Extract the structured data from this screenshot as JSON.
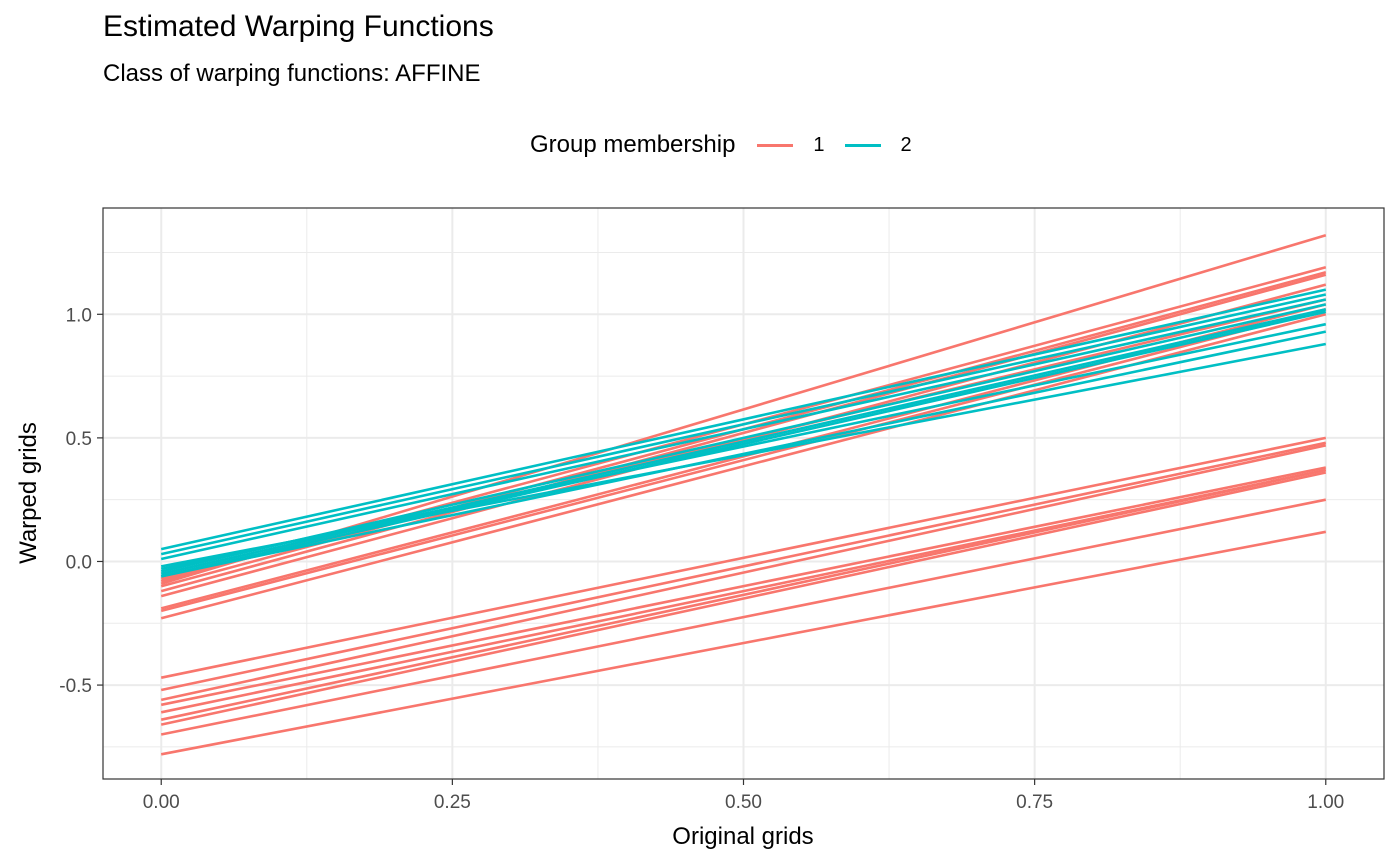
{
  "chart_data": {
    "type": "line",
    "title": "Estimated Warping Functions",
    "subtitle": "Class of warping functions: AFFINE",
    "xlabel": "Original grids",
    "ylabel": "Warped grids",
    "xlim": [
      -0.05,
      1.05
    ],
    "ylim": [
      -0.88,
      1.43
    ],
    "x_ticks": [
      0,
      0.25,
      0.5,
      0.75,
      1
    ],
    "x_tick_labels": [
      "0.00",
      "0.25",
      "0.50",
      "0.75",
      "1.00"
    ],
    "y_ticks": [
      -0.5,
      0,
      0.5,
      1
    ],
    "y_tick_labels": [
      "-0.5",
      "0.0",
      "0.5",
      "1.0"
    ],
    "grid": true,
    "legend": {
      "title": "Group membership",
      "placement": "top",
      "entries": [
        {
          "label": "1",
          "color": "#F8766D"
        },
        {
          "label": "2",
          "color": "#00BFC4"
        }
      ]
    },
    "series": [
      {
        "name": "1",
        "x": [
          0,
          1
        ],
        "values": [
          -0.09,
          1.32
        ]
      },
      {
        "name": "1",
        "x": [
          0,
          1
        ],
        "values": [
          -0.08,
          1.19
        ]
      },
      {
        "name": "1",
        "x": [
          0,
          1
        ],
        "values": [
          -0.1,
          1.17
        ]
      },
      {
        "name": "1",
        "x": [
          0,
          1
        ],
        "values": [
          -0.12,
          1.16
        ]
      },
      {
        "name": "1",
        "x": [
          0,
          1
        ],
        "values": [
          -0.14,
          1.12
        ]
      },
      {
        "name": "1",
        "x": [
          0,
          1
        ],
        "values": [
          -0.07,
          1.06
        ]
      },
      {
        "name": "1",
        "x": [
          0,
          1
        ],
        "values": [
          -0.19,
          1.04
        ]
      },
      {
        "name": "1",
        "x": [
          0,
          1
        ],
        "values": [
          -0.2,
          1.02
        ]
      },
      {
        "name": "1",
        "x": [
          0,
          1
        ],
        "values": [
          -0.23,
          1.0
        ]
      },
      {
        "name": "1",
        "x": [
          0,
          1
        ],
        "values": [
          -0.47,
          0.5
        ]
      },
      {
        "name": "1",
        "x": [
          0,
          1
        ],
        "values": [
          -0.52,
          0.48
        ]
      },
      {
        "name": "1",
        "x": [
          0,
          1
        ],
        "values": [
          -0.56,
          0.47
        ]
      },
      {
        "name": "1",
        "x": [
          0,
          1
        ],
        "values": [
          -0.58,
          0.38
        ]
      },
      {
        "name": "1",
        "x": [
          0,
          1
        ],
        "values": [
          -0.61,
          0.37
        ]
      },
      {
        "name": "1",
        "x": [
          0,
          1
        ],
        "values": [
          -0.64,
          0.37
        ]
      },
      {
        "name": "1",
        "x": [
          0,
          1
        ],
        "values": [
          -0.66,
          0.36
        ]
      },
      {
        "name": "1",
        "x": [
          0,
          1
        ],
        "values": [
          -0.7,
          0.25
        ]
      },
      {
        "name": "1",
        "x": [
          0,
          1
        ],
        "values": [
          -0.78,
          0.12
        ]
      },
      {
        "name": "2",
        "x": [
          0,
          1
        ],
        "values": [
          0.05,
          1.1
        ]
      },
      {
        "name": "2",
        "x": [
          0,
          1
        ],
        "values": [
          0.03,
          1.08
        ]
      },
      {
        "name": "2",
        "x": [
          0,
          1
        ],
        "values": [
          0.01,
          1.06
        ]
      },
      {
        "name": "2",
        "x": [
          0,
          1
        ],
        "values": [
          -0.04,
          1.04
        ]
      },
      {
        "name": "2",
        "x": [
          0,
          1
        ],
        "values": [
          -0.05,
          1.02
        ]
      },
      {
        "name": "2",
        "x": [
          0,
          1
        ],
        "values": [
          -0.06,
          1.01
        ]
      },
      {
        "name": "2",
        "x": [
          0,
          1
        ],
        "values": [
          -0.03,
          0.96
        ]
      },
      {
        "name": "2",
        "x": [
          0,
          1
        ],
        "values": [
          -0.06,
          0.93
        ]
      },
      {
        "name": "2",
        "x": [
          0,
          1
        ],
        "values": [
          -0.02,
          0.88
        ]
      }
    ]
  }
}
